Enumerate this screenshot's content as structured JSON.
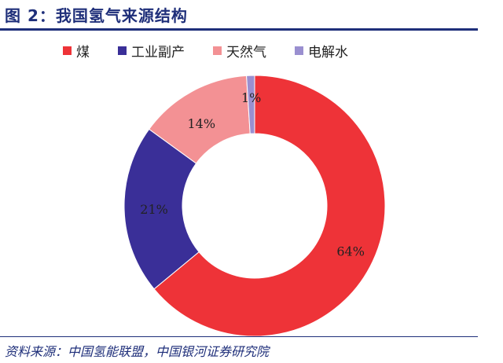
{
  "figure": {
    "title": "图 2：我国氢气来源结构",
    "source": "资料来源：中国氢能联盟，中国银河证券研究院"
  },
  "chart_data": {
    "type": "pie",
    "donut": true,
    "title": "",
    "legend_position": "top",
    "categories": [
      "煤",
      "工业副产",
      "天然气",
      "电解水"
    ],
    "values": [
      64,
      21,
      14,
      1
    ],
    "labels": [
      "64%",
      "21%",
      "14%",
      "1%"
    ],
    "colors": [
      "#ee3338",
      "#3a2f98",
      "#f39194",
      "#9a8fd0"
    ]
  }
}
